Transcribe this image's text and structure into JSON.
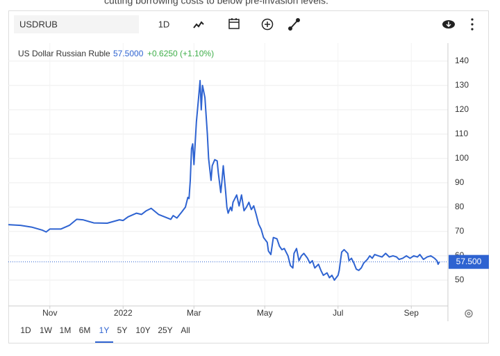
{
  "top_text": "cutting borrowing costs to below pre-invasion levels.",
  "toolbar": {
    "symbol": "USDRUB",
    "interval": "1D"
  },
  "ranges": [
    "1D",
    "1W",
    "1M",
    "6M",
    "1Y",
    "5Y",
    "10Y",
    "25Y",
    "All"
  ],
  "selected_range": 4,
  "chart_data": {
    "type": "line",
    "header": {
      "price": "57.5000",
      "change": "+0.6250 (+1.10%)"
    },
    "x": [
      0,
      10,
      19,
      28,
      31,
      34,
      43,
      50,
      56,
      61,
      70,
      81,
      91,
      94,
      98,
      105,
      109,
      113,
      117,
      123,
      133,
      135,
      138,
      142,
      145,
      147,
      148,
      149,
      150,
      151,
      152,
      154,
      156,
      157,
      158,
      159,
      161,
      163,
      164,
      166,
      167,
      169,
      171,
      172,
      174,
      175,
      176,
      178,
      179,
      180,
      182,
      183,
      184,
      187,
      189,
      191,
      193,
      195,
      197,
      199,
      201,
      203,
      205,
      207,
      209,
      212,
      213,
      215,
      217,
      220,
      222,
      224,
      226,
      229,
      231,
      233,
      234,
      236,
      238,
      240,
      242,
      245,
      247,
      249,
      251,
      254,
      256,
      258,
      261,
      263,
      265,
      267,
      270,
      271,
      272,
      273,
      275,
      278,
      279,
      281,
      283,
      285,
      287,
      289,
      291,
      294,
      296,
      298,
      300,
      303,
      306,
      309,
      312,
      315,
      318,
      320,
      323,
      326,
      329,
      332,
      335,
      337,
      340,
      343,
      346,
      349,
      351,
      352,
      353
    ],
    "series": [
      {
        "name": "US Dollar Russian Ruble",
        "color": "#2e63d1",
        "values": [
          72.8,
          72.5,
          71.8,
          70.5,
          69.8,
          71,
          71,
          72.5,
          75,
          74.8,
          73.5,
          73.4,
          74.8,
          74.5,
          76,
          77.5,
          77,
          78.5,
          79.5,
          77,
          75,
          76.5,
          75.5,
          78,
          80,
          84,
          83.5,
          91,
          104,
          106,
          97.5,
          115,
          126,
          132,
          120,
          130,
          125,
          110,
          100,
          91,
          97,
          99.5,
          99,
          94,
          86,
          91,
          97,
          86,
          80,
          77.5,
          80,
          78.5,
          82,
          85,
          80.5,
          85,
          78.5,
          80,
          82,
          79,
          80.5,
          77,
          73,
          71,
          67.5,
          65.5,
          62,
          60.5,
          67.5,
          67,
          64,
          62.5,
          63,
          60,
          56,
          55,
          61,
          63,
          58,
          60,
          61,
          59,
          57,
          58,
          55,
          56.5,
          54,
          52,
          53,
          51,
          52,
          50,
          52,
          54,
          58,
          61.5,
          62.5,
          61,
          58,
          59,
          57,
          54.5,
          54,
          55,
          57,
          58.5,
          60,
          59,
          60.5,
          60,
          59.5,
          61,
          59.5,
          60,
          59.5,
          58.5,
          59,
          60,
          59,
          60,
          59.5,
          60.5,
          58.5,
          59.5,
          60,
          59,
          58,
          56.5,
          57.5
        ]
      }
    ],
    "price_line": {
      "value": 57.5,
      "label": "57.500"
    },
    "xlim": [
      0,
      360
    ],
    "xticks": [
      {
        "value": 34,
        "label": "Nov"
      },
      {
        "value": 94,
        "label": "2022"
      },
      {
        "value": 152,
        "label": "Mar"
      },
      {
        "value": 210,
        "label": "May"
      },
      {
        "value": 270,
        "label": "Jul"
      },
      {
        "value": 330,
        "label": "Sep"
      }
    ],
    "ylim": [
      39.4,
      147.4
    ],
    "yticks": [
      50,
      60,
      70,
      80,
      90,
      100,
      110,
      120,
      130,
      140
    ],
    "grid": true
  }
}
